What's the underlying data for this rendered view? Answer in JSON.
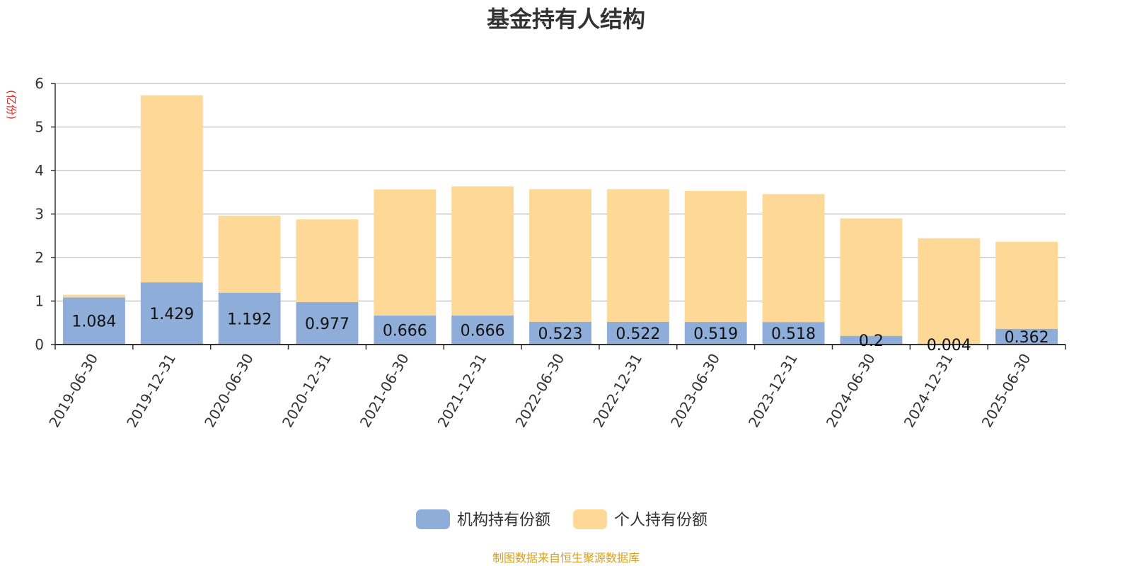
{
  "title": "基金持有人结构",
  "source_note": "制图数据来自恒生聚源数据库",
  "colors": {
    "institutional": "#8eadd8",
    "individual": "#fed897",
    "grid": "#c8c8c8",
    "axis": "#333333",
    "unit": "#e8211d",
    "source": "#d4a020"
  },
  "chart_data": {
    "type": "bar",
    "stacked": true,
    "title": "基金持有人结构",
    "ylabel": "(亿份)",
    "ylim": [
      0,
      6
    ],
    "yticks": [
      0,
      1,
      2,
      3,
      4,
      5,
      6
    ],
    "grid": true,
    "legend_position": "bottom",
    "categories": [
      "2019-06-30",
      "2019-12-31",
      "2020-06-30",
      "2020-12-31",
      "2021-06-30",
      "2021-12-31",
      "2022-06-30",
      "2022-12-31",
      "2023-06-30",
      "2023-12-31",
      "2024-06-30",
      "2024-12-31",
      "2025-06-30"
    ],
    "series": [
      {
        "name": "机构持有份额",
        "color": "#8eadd8",
        "values": [
          1.084,
          1.429,
          1.192,
          0.977,
          0.666,
          0.666,
          0.523,
          0.522,
          0.519,
          0.518,
          0.2,
          0.004,
          0.362
        ],
        "labels": [
          "1.084",
          "1.429",
          "1.192",
          "0.977",
          "0.666",
          "0.666",
          "0.523",
          "0.522",
          "0.519",
          "0.518",
          "0.2",
          "0.004",
          "0.362"
        ]
      },
      {
        "name": "个人持有份额",
        "color": "#fed897",
        "values": [
          0.06,
          4.3,
          1.77,
          1.9,
          2.9,
          2.97,
          3.05,
          3.05,
          3.01,
          2.94,
          2.7,
          2.44,
          2.0
        ]
      }
    ]
  }
}
